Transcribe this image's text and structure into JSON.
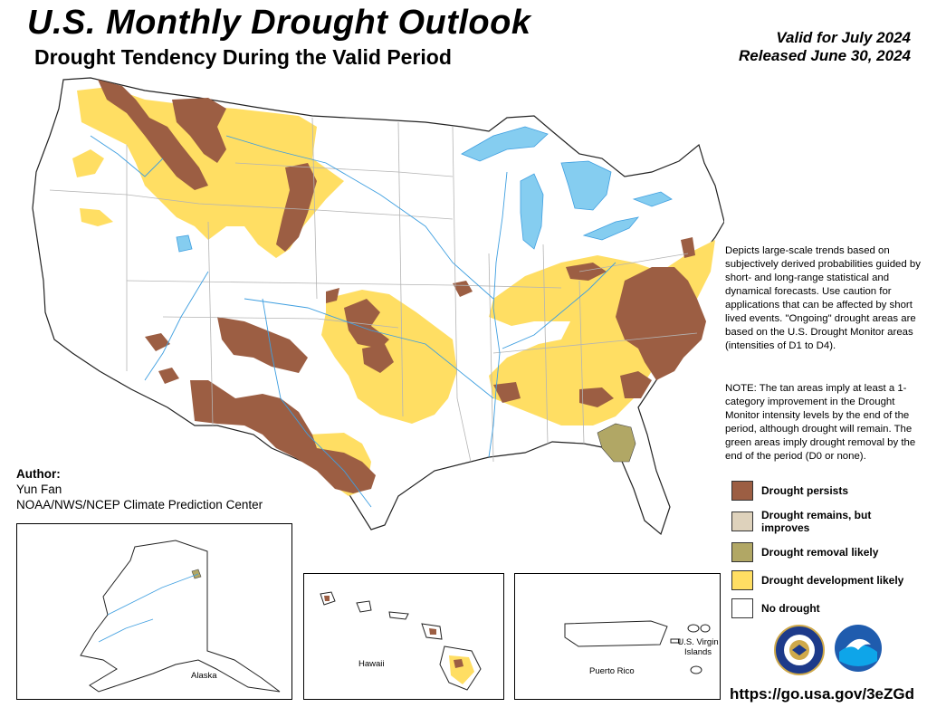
{
  "header": {
    "title": "U.S. Monthly Drought Outlook",
    "subtitle": "Drought Tendency During the Valid Period",
    "valid_for": "Valid for July 2024",
    "released": "Released June 30, 2024"
  },
  "description": "Depicts large-scale trends based on subjectively derived probabilities guided by short- and long-range statistical and dynamical forecasts. Use caution for applications that can be affected by short lived events. \"Ongoing\" drought areas are based on the U.S. Drought Monitor areas (intensities of D1 to D4).",
  "note": "NOTE: The tan areas imply at least a 1-category improvement in the Drought Monitor intensity levels by the end of the period, although drought will remain. The green areas imply drought removal by the end of the period (D0 or none).",
  "legend": [
    {
      "label": "Drought persists",
      "color": "#9c5e43"
    },
    {
      "label": "Drought remains, but improves",
      "color": "#ded2bc"
    },
    {
      "label": "Drought removal likely",
      "color": "#b1a765"
    },
    {
      "label": "Drought development likely",
      "color": "#ffde63"
    },
    {
      "label": "No drought",
      "color": "#ffffff"
    }
  ],
  "author": {
    "heading": "Author:",
    "name": "Yun Fan",
    "org": "NOAA/NWS/NCEP Climate Prediction Center"
  },
  "insets": {
    "alaska": "Alaska",
    "hawaii": "Hawaii",
    "puerto_rico": "Puerto Rico",
    "virgin_islands": "U.S. Virgin Islands"
  },
  "url": "https://go.usa.gov/3eZGd",
  "colors": {
    "water": "#85cdf0",
    "river": "#3f9fe0",
    "border": "#b4b4b4",
    "outline": "#222222"
  },
  "icons": [
    "doc-seal-logo",
    "noaa-logo"
  ]
}
